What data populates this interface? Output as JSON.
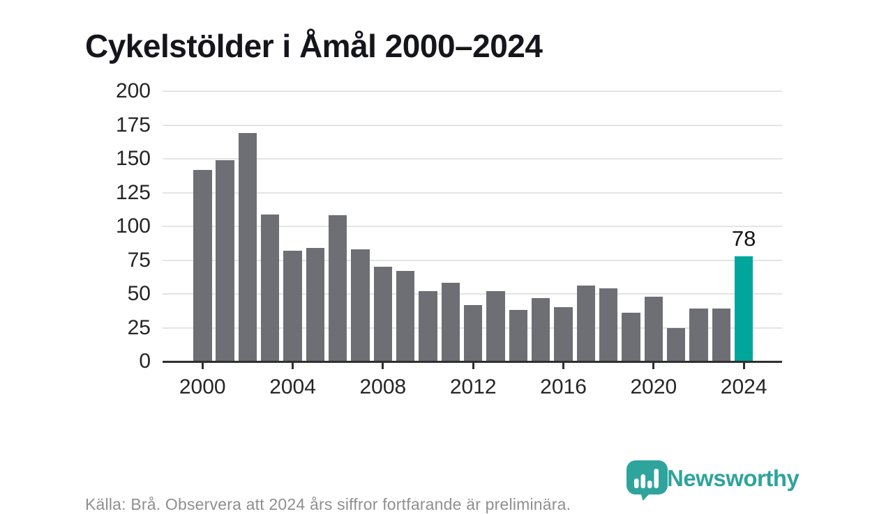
{
  "title": "Cykelstölder i Åmål 2000–2024",
  "source_note": "Källa: Brå. Observera att 2024 års siffror fortfarande är preliminära.",
  "branding": {
    "name": "Newsworthy",
    "icon": "bar-chart-pin-icon"
  },
  "colors": {
    "bar": "#6e6e75",
    "highlight": "#00a59c",
    "brand": "#2ea49c",
    "grid": "#e4e4e4",
    "axis": "#2f2f2f",
    "title": "#15151c",
    "tick": "#252525",
    "muted": "#8f8f8f"
  },
  "chart_data": {
    "type": "bar",
    "title": "Cykelstölder i Åmål 2000–2024",
    "categories": [
      2000,
      2001,
      2002,
      2003,
      2004,
      2005,
      2006,
      2007,
      2008,
      2009,
      2010,
      2011,
      2012,
      2013,
      2014,
      2015,
      2016,
      2017,
      2018,
      2019,
      2020,
      2021,
      2022,
      2023,
      2024
    ],
    "values": [
      142,
      149,
      169,
      109,
      82,
      84,
      108,
      83,
      70,
      67,
      52,
      58,
      42,
      52,
      38,
      47,
      40,
      56,
      54,
      36,
      48,
      25,
      39,
      39,
      78
    ],
    "highlight_category": 2024,
    "highlight_value_label": "78",
    "xlabel": "",
    "ylabel": "",
    "ylim": [
      0,
      200
    ],
    "ytick_step": 25,
    "xticks": [
      2000,
      2004,
      2008,
      2012,
      2016,
      2020,
      2024
    ],
    "grid": true,
    "legend": false
  }
}
